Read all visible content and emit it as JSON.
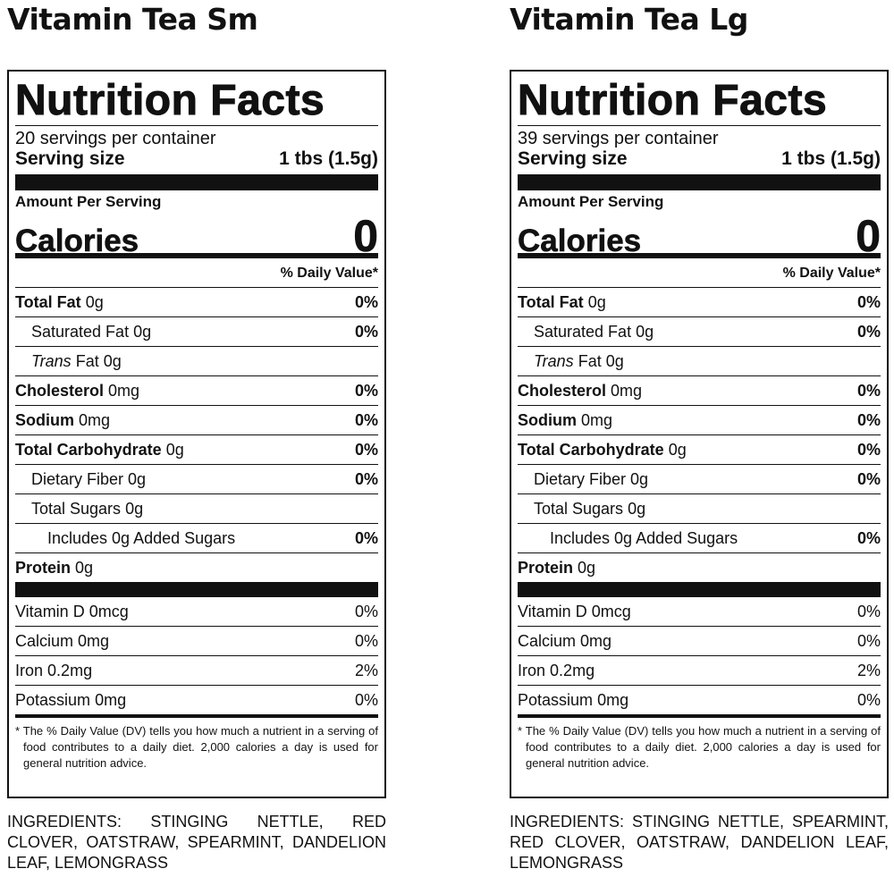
{
  "labels": [
    {
      "product": "Vitamin Tea Sm",
      "title": "Nutrition Facts",
      "servings": "20 servings per container",
      "serving_size_label": "Serving size",
      "serving_size": "1 tbs (1.5g)",
      "amount_per_serving": "Amount Per Serving",
      "calories_label": "Calories",
      "calories": "0",
      "dv_header": "% Daily Value*",
      "nutrients": [
        {
          "name": "Total Fat",
          "amount": "0g",
          "dv": "0%"
        },
        {
          "name": "Saturated Fat",
          "amount": "0g",
          "dv": "0%"
        },
        {
          "prefix": "Trans",
          "name": "Fat",
          "amount": "0g"
        },
        {
          "name": "Cholesterol",
          "amount": "0mg",
          "dv": "0%"
        },
        {
          "name": "Sodium",
          "amount": "0mg",
          "dv": "0%"
        },
        {
          "name": "Total Carbohydrate",
          "amount": "0g",
          "dv": "0%"
        },
        {
          "name": "Dietary Fiber",
          "amount": "0g",
          "dv": "0%"
        },
        {
          "name": "Total Sugars",
          "amount": "0g"
        },
        {
          "name": "Includes 0g Added Sugars",
          "dv": "0%"
        },
        {
          "name": "Protein",
          "amount": "0g"
        }
      ],
      "vitamins": [
        {
          "name": "Vitamin D",
          "amount": "0mcg",
          "dv": "0%"
        },
        {
          "name": "Calcium",
          "amount": "0mg",
          "dv": "0%"
        },
        {
          "name": "Iron",
          "amount": "0.2mg",
          "dv": "2%"
        },
        {
          "name": "Potassium",
          "amount": "0mg",
          "dv": "0%"
        }
      ],
      "footnote": "* The % Daily Value (DV) tells you how much a nutrient in a serving of food contributes to a daily diet. 2,000 calories a day is used for general nutrition advice.",
      "ingredients": "INGREDIENTS: STINGING NETTLE, RED CLOVER, OATSTRAW, SPEARMINT, DANDELION LEAF, LEMONGRASS"
    },
    {
      "product": "Vitamin Tea Lg",
      "title": "Nutrition Facts",
      "servings": "39 servings per container",
      "serving_size_label": "Serving size",
      "serving_size": "1 tbs (1.5g)",
      "amount_per_serving": "Amount Per Serving",
      "calories_label": "Calories",
      "calories": "0",
      "dv_header": "% Daily Value*",
      "nutrients": [
        {
          "name": "Total Fat",
          "amount": "0g",
          "dv": "0%"
        },
        {
          "name": "Saturated Fat",
          "amount": "0g",
          "dv": "0%"
        },
        {
          "prefix": "Trans",
          "name": "Fat",
          "amount": "0g"
        },
        {
          "name": "Cholesterol",
          "amount": "0mg",
          "dv": "0%"
        },
        {
          "name": "Sodium",
          "amount": "0mg",
          "dv": "0%"
        },
        {
          "name": "Total Carbohydrate",
          "amount": "0g",
          "dv": "0%"
        },
        {
          "name": "Dietary Fiber",
          "amount": "0g",
          "dv": "0%"
        },
        {
          "name": "Total Sugars",
          "amount": "0g"
        },
        {
          "name": "Includes 0g Added Sugars",
          "dv": "0%"
        },
        {
          "name": "Protein",
          "amount": "0g"
        }
      ],
      "vitamins": [
        {
          "name": "Vitamin D",
          "amount": "0mcg",
          "dv": "0%"
        },
        {
          "name": "Calcium",
          "amount": "0mg",
          "dv": "0%"
        },
        {
          "name": "Iron",
          "amount": "0.2mg",
          "dv": "2%"
        },
        {
          "name": "Potassium",
          "amount": "0mg",
          "dv": "0%"
        }
      ],
      "footnote": "* The % Daily Value (DV) tells you how much a nutrient in a serving of food contributes to a daily diet. 2,000 calories a day is used for general nutrition advice.",
      "ingredients": "INGREDIENTS: STINGING NETTLE, SPEARMINT, RED CLOVER, OATSTRAW, DANDELION LEAF, LEMONGRASS"
    }
  ]
}
